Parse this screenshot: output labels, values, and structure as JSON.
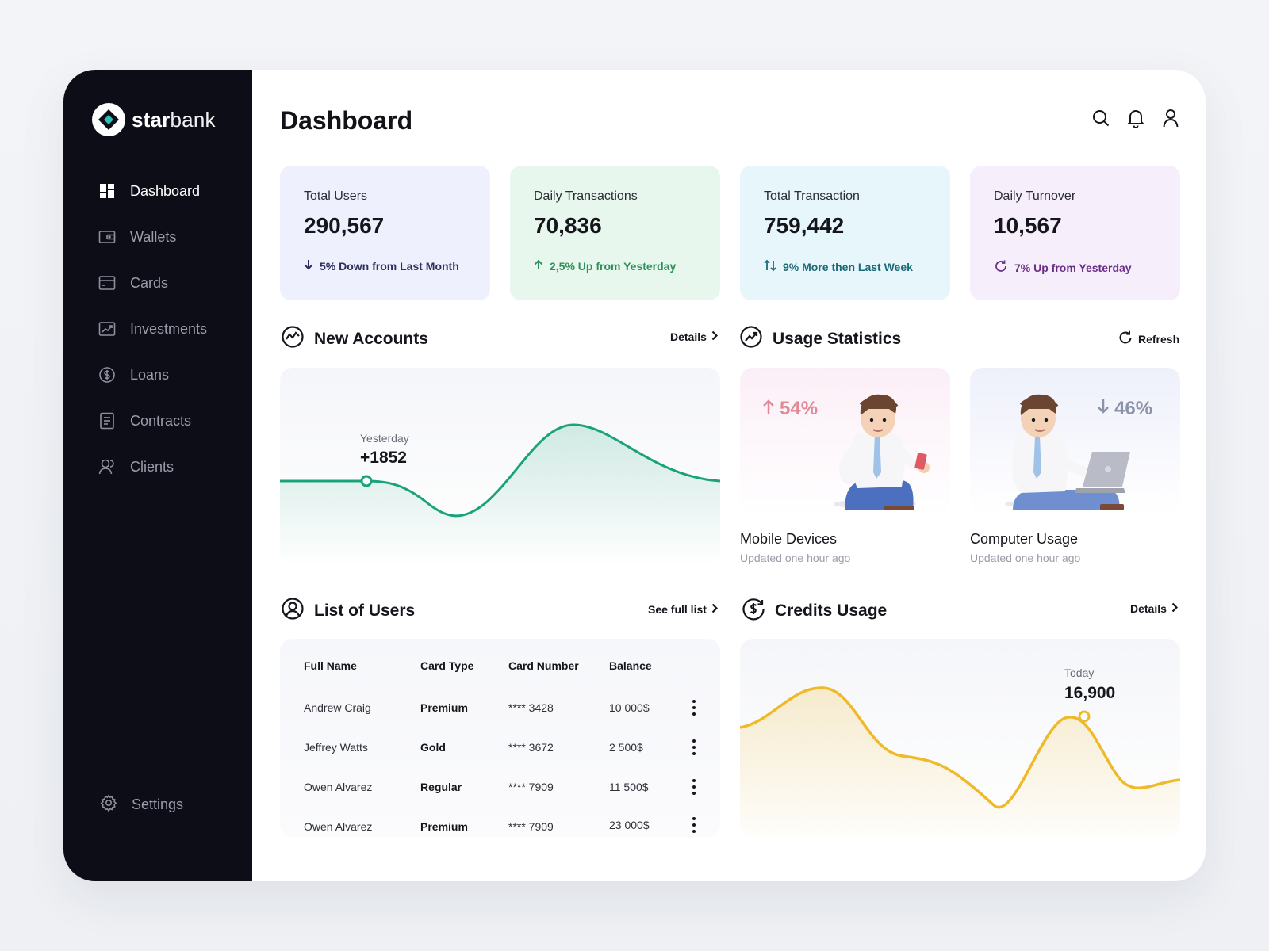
{
  "brand": {
    "name_bold": "star",
    "name_light": "bank"
  },
  "sidebar": {
    "items": [
      {
        "label": "Dashboard",
        "icon": "dashboard-icon",
        "active": true
      },
      {
        "label": "Wallets",
        "icon": "wallet-icon",
        "active": false
      },
      {
        "label": "Cards",
        "icon": "card-icon",
        "active": false
      },
      {
        "label": "Investments",
        "icon": "investments-icon",
        "active": false
      },
      {
        "label": "Loans",
        "icon": "loans-icon",
        "active": false
      },
      {
        "label": "Contracts",
        "icon": "contracts-icon",
        "active": false
      },
      {
        "label": "Clients",
        "icon": "clients-icon",
        "active": false
      }
    ],
    "settings_label": "Settings"
  },
  "header": {
    "title": "Dashboard",
    "icons": [
      "search-icon",
      "bell-icon",
      "user-icon"
    ]
  },
  "stats": [
    {
      "title": "Total Users",
      "value": "290,567",
      "delta": "5% Down from Last Month",
      "color": "#2d2f5c",
      "bg": "#eef0fd"
    },
    {
      "title": "Daily Transactions",
      "value": "70,836",
      "delta": "2,5% Up from Yesterday",
      "color": "#2f8f5b",
      "bg": "#e8f7ee"
    },
    {
      "title": "Total Transaction",
      "value": "759,442",
      "delta": "9% More then Last Week",
      "color": "#1d6a77",
      "bg": "#e6f6fb"
    },
    {
      "title": "Daily Turnover",
      "value": "10,567",
      "delta": "7% Up from Yesterday",
      "color": "#6b2d86",
      "bg": "#f6eefb"
    }
  ],
  "new_accounts": {
    "title": "New Accounts",
    "link": "Details",
    "marker_label": "Yesterday",
    "marker_value": "+1852",
    "color": "#1aa37a"
  },
  "usage": {
    "title": "Usage Statistics",
    "link": "Refresh",
    "cards": [
      {
        "pct": "54%",
        "direction": "up",
        "title": "Mobile Devices",
        "sub": "Updated one hour ago",
        "pct_color": "#e08a96"
      },
      {
        "pct": "46%",
        "direction": "down",
        "title": "Computer Usage",
        "sub": "Updated one hour ago",
        "pct_color": "#8c93a8"
      }
    ]
  },
  "users": {
    "title": "List of Users",
    "link": "See full list",
    "columns": [
      "Full Name",
      "Card Type",
      "Card Number",
      "Balance"
    ],
    "rows": [
      [
        "Andrew Craig",
        "Premium",
        "**** 3428",
        "10 000$"
      ],
      [
        "Jeffrey Watts",
        "Gold",
        "**** 3672",
        "2 500$"
      ],
      [
        "Owen Alvarez",
        "Regular",
        "**** 7909",
        "11 500$"
      ],
      [
        "Owen Alvarez",
        "Premium",
        "**** 7909",
        "23 000$"
      ]
    ]
  },
  "credits": {
    "title": "Credits Usage",
    "link": "Details",
    "marker_label": "Today",
    "marker_value": "16,900",
    "color": "#f0b92a"
  }
}
